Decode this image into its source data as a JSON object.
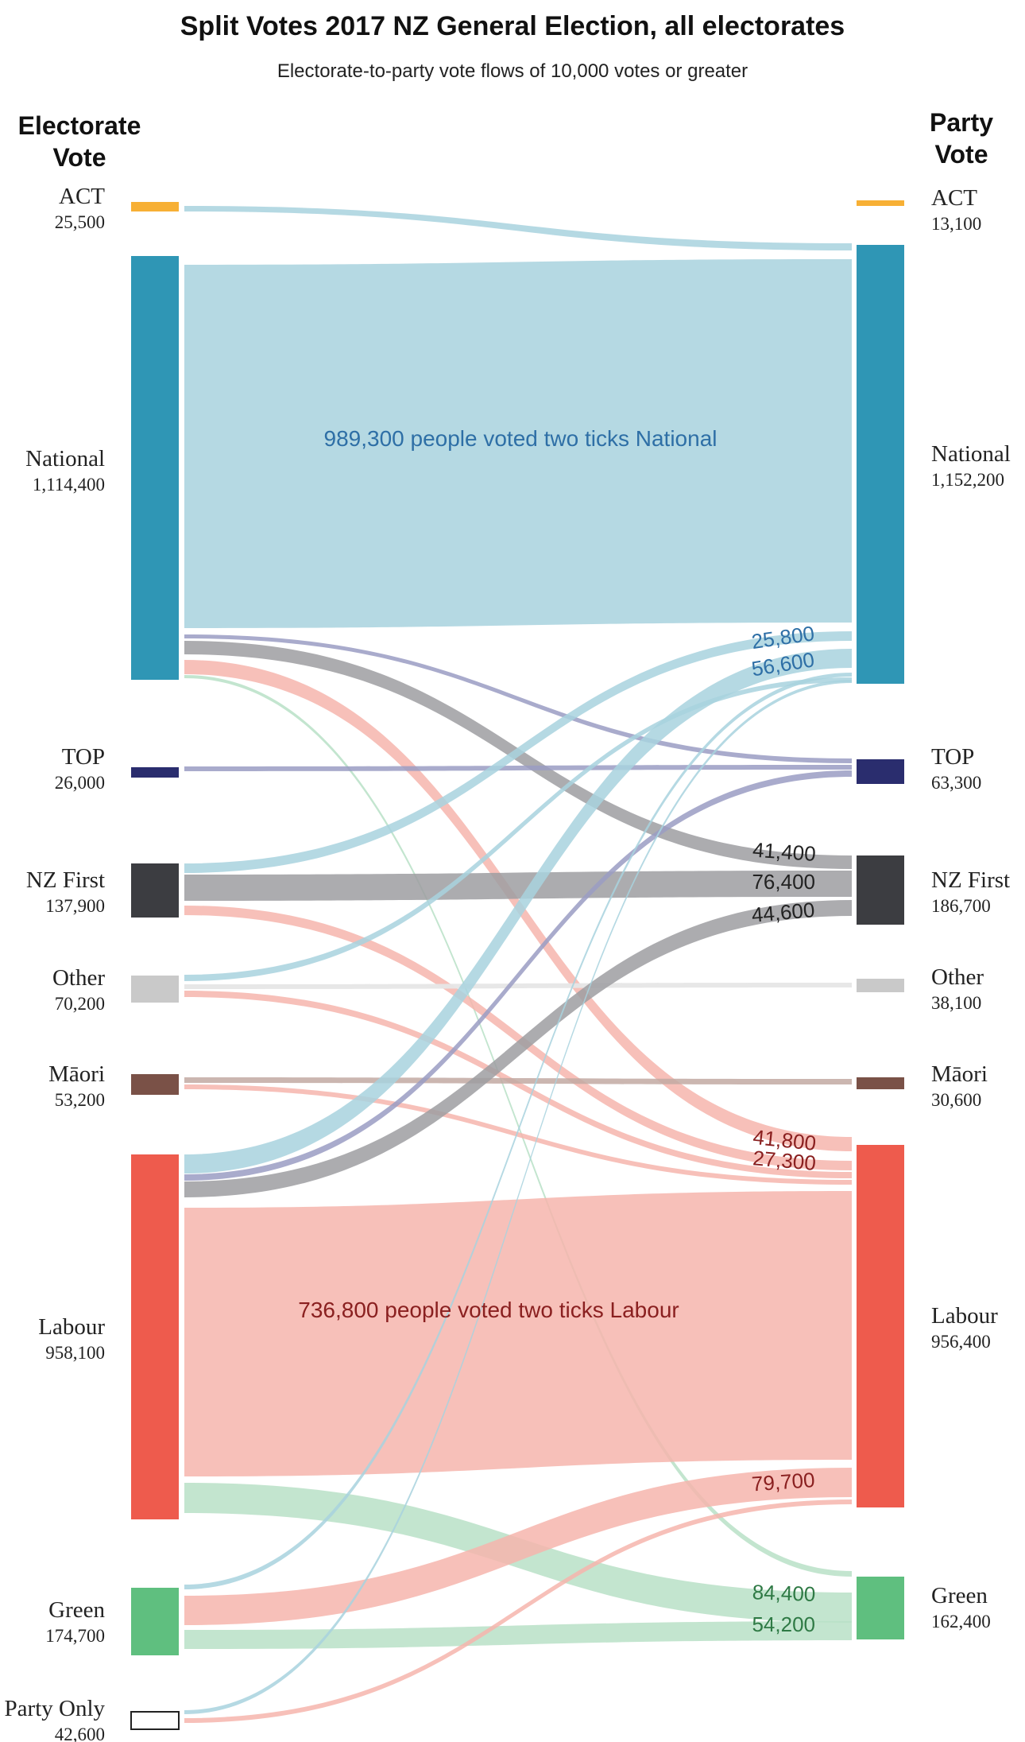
{
  "header": {
    "title": "Split Votes 2017 NZ General Election, all electorates",
    "subtitle": "Electorate-to-party vote flows of 10,000 votes or greater"
  },
  "columns": {
    "left_line1": "Electorate",
    "left_line2": "Vote",
    "right_line1": "Party",
    "right_line2": "Vote"
  },
  "colors": {
    "ACT": "#f7b035",
    "National": "#2f96b5",
    "TOP": "#2a2d6e",
    "NZFirst": "#3c3d41",
    "Other": "#c9c9c9",
    "Maori": "#7a5147",
    "Labour": "#ee5b4d",
    "Green": "#5fbf7f",
    "PartyOnly": "#ffffff",
    "flow_National": "#a8d2de",
    "flow_Labour": "#f6b5ad",
    "flow_NZFirst": "#9e9ea1",
    "flow_TOP": "#9a9cc3",
    "flow_Green": "#b9e1c7",
    "flow_Other": "#e6e6e6",
    "flow_Maori": "#c2a9a2",
    "label_National": "#2e6fa6",
    "label_Labour": "#8a2020",
    "label_Green": "#2f7a45",
    "label_NZFirst": "#222222"
  },
  "electorate_nodes": [
    {
      "id": "ACT",
      "name": "ACT",
      "value": "25,500"
    },
    {
      "id": "National",
      "name": "National",
      "value": "1,114,400"
    },
    {
      "id": "TOP",
      "name": "TOP",
      "value": "26,000"
    },
    {
      "id": "NZFirst",
      "name": "NZ First",
      "value": "137,900"
    },
    {
      "id": "Other",
      "name": "Other",
      "value": "70,200"
    },
    {
      "id": "Maori",
      "name": "Māori",
      "value": "53,200"
    },
    {
      "id": "Labour",
      "name": "Labour",
      "value": "958,100"
    },
    {
      "id": "Green",
      "name": "Green",
      "value": "174,700"
    },
    {
      "id": "PartyOnly",
      "name": "Party Only",
      "value": "42,600"
    }
  ],
  "party_nodes": [
    {
      "id": "ACT",
      "name": "ACT",
      "value": "13,100"
    },
    {
      "id": "National",
      "name": "National",
      "value": "1,152,200"
    },
    {
      "id": "TOP",
      "name": "TOP",
      "value": "63,300"
    },
    {
      "id": "NZFirst",
      "name": "NZ First",
      "value": "186,700"
    },
    {
      "id": "Other",
      "name": "Other",
      "value": "38,100"
    },
    {
      "id": "Maori",
      "name": "Māori",
      "value": "30,600"
    },
    {
      "id": "Labour",
      "name": "Labour",
      "value": "956,400"
    },
    {
      "id": "Green",
      "name": "Green",
      "value": "162,400"
    }
  ],
  "flows": [
    {
      "from": "ACT",
      "to": "National",
      "value": 13000
    },
    {
      "from": "National",
      "to": "National",
      "value": 989300,
      "label": "989,300 people voted two ticks National"
    },
    {
      "from": "National",
      "to": "TOP",
      "value": 12000
    },
    {
      "from": "National",
      "to": "NZFirst",
      "value": 41400,
      "label": "41,400"
    },
    {
      "from": "National",
      "to": "Labour",
      "value": 41800,
      "label": "41,800"
    },
    {
      "from": "National",
      "to": "Green",
      "value": 10000
    },
    {
      "from": "TOP",
      "to": "TOP",
      "value": 11000
    },
    {
      "from": "NZFirst",
      "to": "National",
      "value": 25800,
      "label": "25,800"
    },
    {
      "from": "NZFirst",
      "to": "NZFirst",
      "value": 76400,
      "label": "76,400"
    },
    {
      "from": "NZFirst",
      "to": "Labour",
      "value": 27300,
      "label": "27,300"
    },
    {
      "from": "Other",
      "to": "National",
      "value": 15000
    },
    {
      "from": "Other",
      "to": "Other",
      "value": 14000
    },
    {
      "from": "Other",
      "to": "Labour",
      "value": 16000
    },
    {
      "from": "Maori",
      "to": "Maori",
      "value": 14000
    },
    {
      "from": "Maori",
      "to": "Labour",
      "value": 14000
    },
    {
      "from": "Labour",
      "to": "National",
      "value": 56600,
      "label": "56,600"
    },
    {
      "from": "Labour",
      "to": "TOP",
      "value": 17000
    },
    {
      "from": "Labour",
      "to": "NZFirst",
      "value": 44600,
      "label": "44,600"
    },
    {
      "from": "Labour",
      "to": "Labour",
      "value": 736800,
      "label": "736,800 people voted two ticks Labour"
    },
    {
      "from": "Labour",
      "to": "Green",
      "value": 84400,
      "label": "84,400"
    },
    {
      "from": "Green",
      "to": "National",
      "value": 13000
    },
    {
      "from": "Green",
      "to": "Labour",
      "value": 79700,
      "label": "79,700"
    },
    {
      "from": "Green",
      "to": "Green",
      "value": 54200,
      "label": "54,200"
    },
    {
      "from": "PartyOnly",
      "to": "National",
      "value": 11000
    },
    {
      "from": "PartyOnly",
      "to": "Labour",
      "value": 13000
    }
  ]
}
